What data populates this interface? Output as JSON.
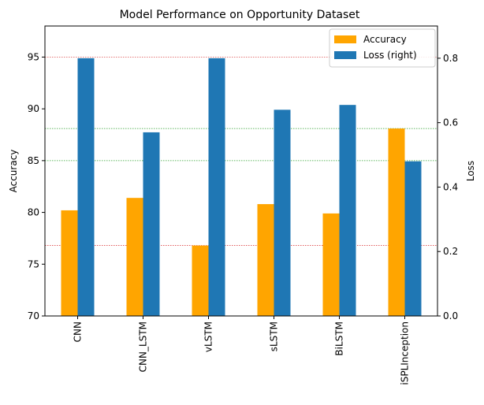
{
  "chart_data": {
    "type": "bar",
    "title": "Model Performance on Opportunity Dataset",
    "categories": [
      "CNN",
      "CNN_LSTM",
      "vLSTM",
      "sLSTM",
      "BiLSTM",
      "iSPLInception"
    ],
    "series": [
      {
        "name": "Accuracy",
        "axis": "left",
        "color": "#ffa500",
        "values": [
          80.2,
          81.4,
          76.8,
          80.8,
          79.9,
          88.1
        ]
      },
      {
        "name": "Loss (right)",
        "axis": "right",
        "color": "#1f77b4",
        "values": [
          0.8,
          0.57,
          0.8,
          0.64,
          0.655,
          0.48
        ]
      }
    ],
    "ylabel": "Accuracy",
    "ylim": [
      70,
      98
    ],
    "yticks": [
      70,
      75,
      80,
      85,
      90,
      95
    ],
    "y2label": "Loss",
    "y2lim": [
      0,
      0.9
    ],
    "y2ticks": [
      0.0,
      0.2,
      0.4,
      0.6,
      0.8
    ],
    "y2tick_labels": [
      "0.0",
      "0.2",
      "0.4",
      "0.6",
      "0.8"
    ],
    "legend_position": "top-right",
    "reference_lines": [
      {
        "axis": "left",
        "value": 95,
        "color": "#d62728"
      },
      {
        "axis": "left",
        "value": 88.1,
        "color": "#2ca02c"
      },
      {
        "axis": "left",
        "value": 85,
        "color": "#2ca02c"
      },
      {
        "axis": "left",
        "value": 76.8,
        "color": "#d62728"
      }
    ]
  }
}
